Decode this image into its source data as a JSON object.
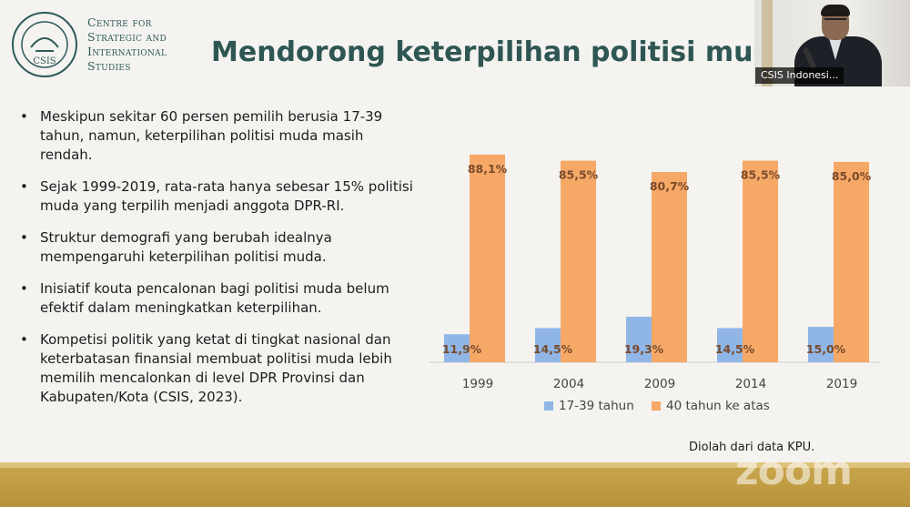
{
  "slide": {
    "logo": {
      "seal_text": "CSIS",
      "line1": "Centre for",
      "line2": "Strategic and",
      "line3": "International",
      "line4": "Studies"
    },
    "title": "Mendorong keterpilihan politisi muda",
    "bullets": [
      "Meskipun sekitar 60 persen pemilih berusia 17-39 tahun, namun, keterpilihan politisi muda masih rendah.",
      "Sejak 1999-2019, rata-rata hanya sebesar 15% politisi muda yang terpilih menjadi anggota DPR-RI.",
      "Struktur demografi yang berubah idealnya mempengaruhi keterpilihan politisi muda.",
      "Inisiatif kouta pencalonan bagi politisi muda belum efektif dalam meningkatkan keterpilihan.",
      "Kompetisi politik yang ketat di tingkat nasional dan keterbatasan finansial membuat politisi muda lebih memilih mencalonkan di level DPR Provinsi dan Kabupaten/Kota (CSIS, 2023)."
    ],
    "source_note": "Diolah dari data KPU."
  },
  "chart_data": {
    "type": "bar",
    "categories": [
      "1999",
      "2004",
      "2009",
      "2014",
      "2019"
    ],
    "series": [
      {
        "name": "17-39 tahun",
        "values": [
          11.9,
          14.5,
          19.3,
          14.5,
          15.0
        ],
        "labels": [
          "11,9%",
          "14,5%",
          "19,3%",
          "14,5%",
          "15,0%"
        ],
        "color": "#8fb6e6"
      },
      {
        "name": "40 tahun ke atas",
        "values": [
          88.1,
          85.5,
          80.7,
          85.5,
          85.0
        ],
        "labels": [
          "88,1%",
          "85,5%",
          "80,7%",
          "85,5%",
          "85,0%"
        ],
        "color": "#f6a867"
      }
    ],
    "ylim": [
      0,
      100
    ],
    "grid": false,
    "legend": "bottom",
    "label_color": "#7a4a2a"
  },
  "webcam": {
    "participant_name": "CSIS Indonesi..."
  },
  "watermark": "zoom"
}
